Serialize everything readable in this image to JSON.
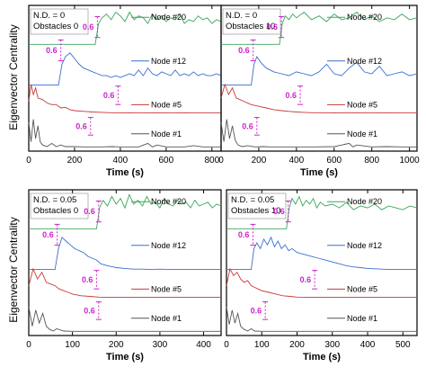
{
  "figure": {
    "ylabel": "Eigenvector Centrality",
    "xlabel": "Time (s)",
    "colors": {
      "node20": "#3aa55a",
      "node12": "#3a6fd0",
      "node5": "#c73a3a",
      "node1": "#555555",
      "annotation": "#cc22cc"
    }
  },
  "chart_data": [
    {
      "type": "line",
      "info_lines": [
        "N.D. = 0",
        "Obstacles 0"
      ],
      "xlabel": "Time (s)",
      "ylabel": "Eigenvector Centrality",
      "xlim": [
        0,
        840
      ],
      "xticks": [
        0,
        200,
        400,
        600,
        800
      ],
      "series": [
        {
          "name": "Node #20",
          "key": "node20",
          "onset": 300,
          "scale_value": "0.6",
          "x": [
            0,
            290,
            305,
            320,
            340,
            360,
            380,
            400,
            420,
            440,
            460,
            480,
            500,
            520,
            540,
            560,
            580,
            600,
            620,
            640,
            660,
            680,
            700,
            720,
            740,
            760,
            780,
            800,
            820,
            840
          ],
          "y": [
            0.05,
            0.05,
            0.6,
            0.75,
            0.85,
            0.7,
            0.9,
            0.8,
            0.65,
            0.9,
            0.7,
            0.8,
            0.75,
            0.6,
            0.85,
            0.7,
            0.8,
            0.65,
            0.75,
            0.7,
            0.85,
            0.6,
            0.7,
            0.65,
            0.8,
            0.7,
            0.75,
            0.6,
            0.7,
            0.65
          ]
        },
        {
          "name": "Node #12",
          "key": "node12",
          "onset": 140,
          "scale_value": "0.6",
          "x": [
            0,
            130,
            145,
            160,
            180,
            200,
            220,
            240,
            260,
            280,
            300,
            320,
            340,
            360,
            380,
            400,
            420,
            440,
            460,
            480,
            500,
            520,
            540,
            560,
            580,
            600,
            620,
            640,
            660,
            680,
            700,
            720,
            740,
            760,
            780,
            800,
            820,
            840
          ],
          "y": [
            0.05,
            0.05,
            0.6,
            0.8,
            0.9,
            0.75,
            0.6,
            0.5,
            0.45,
            0.4,
            0.35,
            0.3,
            0.3,
            0.25,
            0.3,
            0.25,
            0.3,
            0.35,
            0.3,
            0.45,
            0.3,
            0.5,
            0.35,
            0.3,
            0.4,
            0.35,
            0.3,
            0.45,
            0.3,
            0.35,
            0.3,
            0.4,
            0.3,
            0.35,
            0.3,
            0.3,
            0.35,
            0.3
          ]
        },
        {
          "name": "Node #5",
          "key": "node5",
          "onset": 390,
          "scale_value": "0.6",
          "x": [
            0,
            10,
            20,
            30,
            40,
            60,
            80,
            100,
            120,
            140,
            160,
            180,
            200,
            240,
            280,
            320,
            360,
            400,
            440,
            480,
            520,
            560,
            600,
            640,
            680,
            720,
            760,
            800,
            840
          ],
          "y": [
            0.4,
            0.9,
            0.6,
            0.8,
            0.5,
            0.45,
            0.35,
            0.3,
            0.3,
            0.2,
            0.22,
            0.15,
            0.12,
            0.1,
            0.08,
            0.07,
            0.06,
            0.05,
            0.06,
            0.05,
            0.05,
            0.06,
            0.05,
            0.05,
            0.06,
            0.05,
            0.05,
            0.05,
            0.05
          ]
        },
        {
          "name": "Node #1",
          "key": "node1",
          "onset": 270,
          "scale_value": "0.6",
          "x": [
            0,
            10,
            20,
            30,
            40,
            50,
            60,
            80,
            100,
            120,
            140,
            160,
            200,
            240,
            280,
            320,
            360,
            400,
            440,
            480,
            520,
            540,
            560,
            600,
            640,
            680,
            720,
            760,
            800,
            840
          ],
          "y": [
            0.8,
            0.2,
            0.9,
            0.3,
            0.7,
            0.2,
            0.1,
            0.05,
            0.15,
            0.05,
            0.1,
            0.05,
            0.05,
            0.04,
            0.04,
            0.04,
            0.05,
            0.04,
            0.04,
            0.04,
            0.15,
            0.04,
            0.1,
            0.04,
            0.04,
            0.04,
            0.08,
            0.04,
            0.04,
            0.04
          ]
        }
      ]
    },
    {
      "type": "line",
      "info_lines": [
        "N.D. = 0",
        "Obstacles 10"
      ],
      "xlabel": "Time (s)",
      "ylabel": "Eigenvector Centrality",
      "xlim": [
        0,
        1040
      ],
      "xticks": [
        0,
        200,
        400,
        600,
        800,
        1000
      ],
      "series": [
        {
          "name": "Node #20",
          "key": "node20",
          "onset": 320,
          "scale_value": "0.6",
          "x": [
            0,
            310,
            325,
            340,
            360,
            380,
            400,
            440,
            480,
            520,
            560,
            600,
            640,
            680,
            720,
            760,
            800,
            840,
            880,
            920,
            960,
            1000,
            1040
          ],
          "y": [
            0.05,
            0.05,
            0.6,
            0.8,
            0.7,
            0.85,
            0.75,
            0.9,
            0.7,
            0.8,
            0.65,
            0.85,
            0.7,
            0.75,
            0.9,
            0.7,
            0.8,
            0.65,
            0.75,
            0.7,
            0.85,
            0.7,
            0.75
          ]
        },
        {
          "name": "Node #12",
          "key": "node12",
          "onset": 170,
          "scale_value": "0.6",
          "x": [
            0,
            160,
            175,
            190,
            210,
            240,
            280,
            320,
            360,
            400,
            440,
            480,
            520,
            560,
            600,
            640,
            680,
            720,
            760,
            800,
            840,
            880,
            920,
            960,
            1000,
            1040
          ],
          "y": [
            0.05,
            0.05,
            0.6,
            0.8,
            0.65,
            0.5,
            0.4,
            0.35,
            0.3,
            0.4,
            0.35,
            0.3,
            0.4,
            0.6,
            0.35,
            0.3,
            0.5,
            0.65,
            0.4,
            0.35,
            0.55,
            0.3,
            0.35,
            0.4,
            0.3,
            0.35
          ]
        },
        {
          "name": "Node #5",
          "key": "node5",
          "onset": 420,
          "scale_value": "0.6",
          "x": [
            0,
            20,
            40,
            60,
            80,
            100,
            120,
            160,
            200,
            240,
            280,
            320,
            360,
            400,
            440,
            480,
            520,
            560,
            600,
            640,
            680,
            720,
            760,
            800,
            840,
            880,
            920,
            960,
            1000,
            1040
          ],
          "y": [
            0.5,
            0.9,
            0.6,
            0.8,
            0.5,
            0.45,
            0.4,
            0.3,
            0.25,
            0.2,
            0.15,
            0.12,
            0.1,
            0.08,
            0.07,
            0.06,
            0.06,
            0.05,
            0.06,
            0.05,
            0.05,
            0.06,
            0.05,
            0.05,
            0.05,
            0.06,
            0.05,
            0.05,
            0.05,
            0.05
          ]
        },
        {
          "name": "Node #1",
          "key": "node1",
          "onset": 190,
          "scale_value": "0.6",
          "x": [
            0,
            15,
            30,
            45,
            60,
            75,
            90,
            110,
            140,
            180,
            220,
            260,
            300,
            400,
            500,
            600,
            680,
            700,
            720,
            800,
            880,
            960,
            1000,
            1040
          ],
          "y": [
            0.8,
            0.2,
            0.9,
            0.3,
            0.7,
            0.25,
            0.1,
            0.05,
            0.08,
            0.04,
            0.05,
            0.04,
            0.04,
            0.04,
            0.04,
            0.05,
            0.15,
            0.04,
            0.1,
            0.04,
            0.05,
            0.04,
            0.04,
            0.04
          ]
        }
      ]
    },
    {
      "type": "line",
      "info_lines": [
        "N.D. = 0.05",
        "Obstacles 0"
      ],
      "xlabel": "Time (s)",
      "ylabel": "Eigenvector Centrality",
      "xlim": [
        0,
        440
      ],
      "xticks": [
        0,
        100,
        200,
        300,
        400
      ],
      "series": [
        {
          "name": "Node #20",
          "key": "node20",
          "onset": 160,
          "scale_value": "0.6",
          "x": [
            0,
            155,
            162,
            170,
            180,
            190,
            200,
            210,
            220,
            230,
            240,
            250,
            260,
            270,
            280,
            290,
            300,
            310,
            320,
            330,
            340,
            350,
            360,
            370,
            380,
            390,
            400,
            410,
            420,
            430,
            440
          ],
          "y": [
            0.05,
            0.05,
            0.6,
            0.8,
            0.65,
            0.9,
            0.7,
            0.85,
            0.6,
            0.95,
            0.7,
            0.8,
            0.65,
            0.9,
            0.7,
            0.75,
            0.6,
            0.85,
            0.7,
            0.65,
            0.8,
            0.7,
            0.75,
            0.6,
            0.8,
            0.65,
            0.7,
            0.75,
            0.6,
            0.7,
            0.65
          ]
        },
        {
          "name": "Node #12",
          "key": "node12",
          "onset": 65,
          "scale_value": "0.6",
          "x": [
            0,
            60,
            68,
            76,
            85,
            95,
            105,
            115,
            125,
            135,
            145,
            155,
            165,
            180,
            200,
            220,
            240,
            260,
            280,
            300,
            320,
            340,
            360,
            380,
            400,
            420,
            440
          ],
          "y": [
            0.05,
            0.05,
            0.6,
            0.9,
            0.8,
            0.7,
            0.6,
            0.55,
            0.5,
            0.4,
            0.35,
            0.3,
            0.2,
            0.15,
            0.1,
            0.08,
            0.06,
            0.06,
            0.05,
            0.06,
            0.05,
            0.05,
            0.05,
            0.05,
            0.05,
            0.05,
            0.05
          ]
        },
        {
          "name": "Node #5",
          "key": "node5",
          "onset": 155,
          "scale_value": "0.6",
          "x": [
            0,
            10,
            20,
            30,
            40,
            50,
            60,
            70,
            80,
            90,
            100,
            120,
            140,
            160,
            180,
            200,
            240,
            280,
            320,
            360,
            400,
            440
          ],
          "y": [
            0.4,
            0.9,
            0.6,
            0.8,
            0.5,
            0.45,
            0.4,
            0.3,
            0.25,
            0.2,
            0.15,
            0.1,
            0.08,
            0.06,
            0.05,
            0.05,
            0.05,
            0.05,
            0.05,
            0.05,
            0.05,
            0.05
          ]
        },
        {
          "name": "Node #1",
          "key": "node1",
          "onset": 160,
          "scale_value": "0.6",
          "x": [
            0,
            8,
            16,
            24,
            32,
            40,
            48,
            56,
            64,
            80,
            100,
            120,
            140,
            160,
            200,
            240,
            280,
            320,
            360,
            400,
            440
          ],
          "y": [
            0.8,
            0.2,
            0.7,
            0.3,
            0.6,
            0.2,
            0.1,
            0.05,
            0.12,
            0.05,
            0.04,
            0.04,
            0.04,
            0.04,
            0.04,
            0.04,
            0.04,
            0.04,
            0.04,
            0.04,
            0.04
          ]
        }
      ]
    },
    {
      "type": "line",
      "info_lines": [
        "N.D. = 0.05",
        "Obstacles 10"
      ],
      "xlabel": "Time (s)",
      "ylabel": "Eigenvector Centrality",
      "xlim": [
        0,
        540
      ],
      "xticks": [
        0,
        100,
        200,
        300,
        400,
        500
      ],
      "series": [
        {
          "name": "Node #20",
          "key": "node20",
          "onset": 175,
          "scale_value": "0.6",
          "x": [
            0,
            170,
            178,
            186,
            196,
            206,
            216,
            226,
            236,
            246,
            256,
            266,
            280,
            300,
            320,
            340,
            360,
            380,
            400,
            420,
            440,
            460,
            480,
            500,
            520,
            540
          ],
          "y": [
            0.05,
            0.05,
            0.6,
            0.85,
            0.7,
            0.9,
            0.65,
            0.8,
            0.7,
            0.85,
            0.6,
            0.75,
            0.65,
            0.7,
            0.6,
            0.75,
            0.55,
            0.65,
            0.6,
            0.7,
            0.55,
            0.65,
            0.6,
            0.55,
            0.65,
            0.6
          ]
        },
        {
          "name": "Node #12",
          "key": "node12",
          "onset": 75,
          "scale_value": "0.6",
          "x": [
            0,
            70,
            78,
            86,
            96,
            106,
            116,
            126,
            136,
            146,
            156,
            166,
            176,
            186,
            200,
            220,
            240,
            260,
            280,
            300,
            320,
            340,
            360,
            380,
            400,
            420,
            440,
            460,
            480,
            500,
            520,
            540
          ],
          "y": [
            0.05,
            0.05,
            0.6,
            0.75,
            0.6,
            0.85,
            0.7,
            0.9,
            0.65,
            0.8,
            0.6,
            0.7,
            0.55,
            0.6,
            0.5,
            0.45,
            0.4,
            0.35,
            0.3,
            0.25,
            0.2,
            0.15,
            0.12,
            0.1,
            0.08,
            0.07,
            0.06,
            0.05,
            0.05,
            0.05,
            0.05,
            0.05
          ]
        },
        {
          "name": "Node #5",
          "key": "node5",
          "onset": 250,
          "scale_value": "0.6",
          "x": [
            0,
            10,
            20,
            30,
            40,
            50,
            60,
            70,
            80,
            90,
            100,
            120,
            140,
            160,
            180,
            200,
            240,
            280,
            320,
            360,
            400,
            440,
            480,
            520,
            540
          ],
          "y": [
            0.4,
            0.9,
            0.7,
            0.8,
            0.6,
            0.5,
            0.55,
            0.4,
            0.35,
            0.3,
            0.25,
            0.2,
            0.15,
            0.1,
            0.08,
            0.06,
            0.05,
            0.05,
            0.05,
            0.05,
            0.05,
            0.05,
            0.05,
            0.05,
            0.05
          ]
        },
        {
          "name": "Node #1",
          "key": "node1",
          "onset": 110,
          "scale_value": "0.6",
          "x": [
            0,
            8,
            16,
            24,
            32,
            40,
            50,
            60,
            70,
            80,
            100,
            120,
            140,
            160,
            200,
            240,
            280,
            320,
            360,
            400,
            440,
            480,
            520,
            540
          ],
          "y": [
            0.8,
            0.25,
            0.7,
            0.3,
            0.6,
            0.2,
            0.1,
            0.05,
            0.12,
            0.05,
            0.04,
            0.04,
            0.04,
            0.04,
            0.04,
            0.04,
            0.04,
            0.04,
            0.04,
            0.04,
            0.04,
            0.04,
            0.04,
            0.04
          ]
        }
      ]
    }
  ]
}
